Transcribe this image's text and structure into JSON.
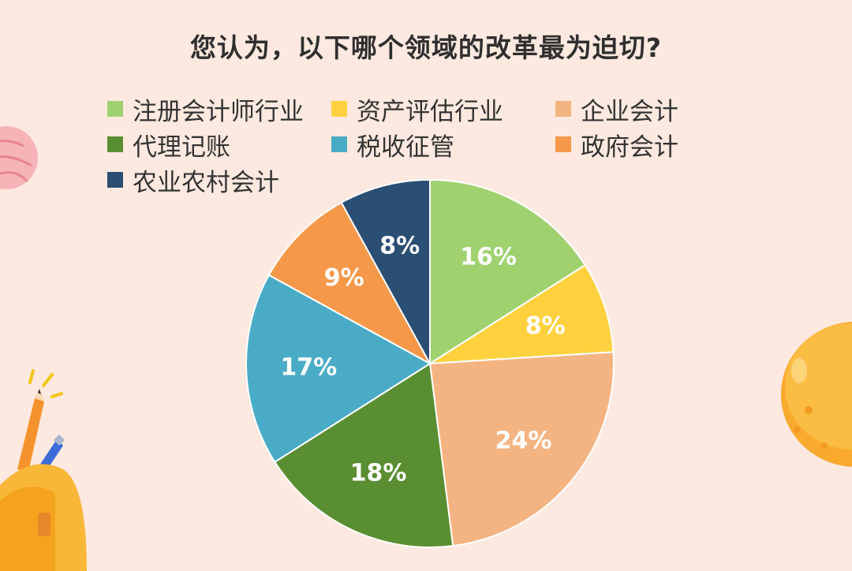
{
  "chart_data": {
    "type": "pie",
    "title": "您认为，以下哪个领域的改革最为迫切?",
    "legend_position": "top",
    "slices": [
      {
        "label": "注册会计师行业",
        "value": 16,
        "display": "16%",
        "color": "#9fd26f"
      },
      {
        "label": "资产评估行业",
        "value": 8,
        "display": "8%",
        "color": "#ffd13f"
      },
      {
        "label": "企业会计",
        "value": 24,
        "display": "24%",
        "color": "#f4b482"
      },
      {
        "label": "代理记账",
        "value": 18,
        "display": "18%",
        "color": "#5a8e32"
      },
      {
        "label": "税收征管",
        "value": 17,
        "display": "17%",
        "color": "#4aabc6"
      },
      {
        "label": "政府会计",
        "value": 9,
        "display": "9%",
        "color": "#f6984a"
      },
      {
        "label": "农业农村会计",
        "value": 8,
        "display": "8%",
        "color": "#2b4e73"
      }
    ]
  },
  "theme": {
    "background": "#fde9df",
    "label_color": "#ffffff",
    "slice_stroke": "#ffffff"
  }
}
